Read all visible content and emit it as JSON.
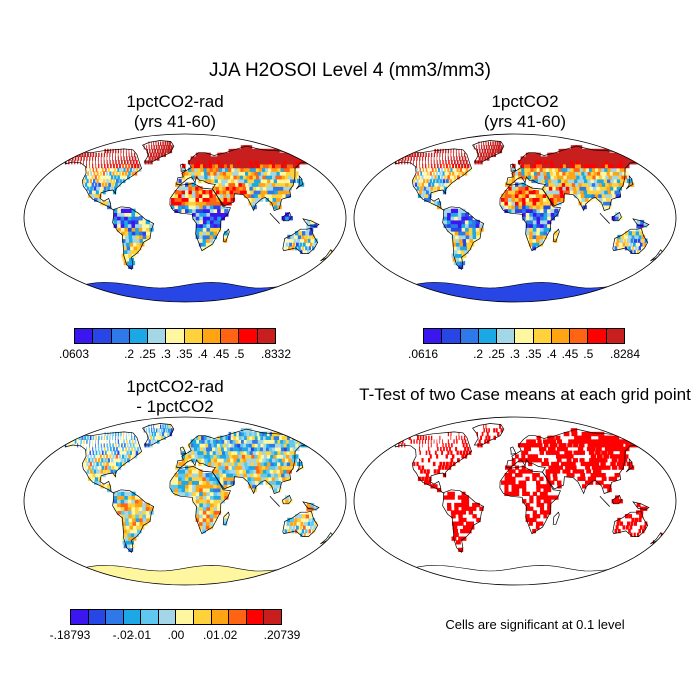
{
  "title": "JJA H2OSOI Level 4 (mm3/mm3)",
  "panels": [
    {
      "title_line1": "1pctCO2-rad",
      "title_line2": "(yrs 41-60)"
    },
    {
      "title_line1": "1pctCO2",
      "title_line2": "(yrs 41-60)"
    },
    {
      "title_line1": "1pctCO2-rad",
      "title_line2": "- 1pctCO2"
    },
    {
      "title_line1": "T-Test of two Case means at each grid point",
      "title_line2": ""
    }
  ],
  "colorbars": {
    "abs_colors": [
      "#3c16f0",
      "#2846e6",
      "#2f78e8",
      "#1ca8e6",
      "#a3d6e6",
      "#fff7a0",
      "#ffd23c",
      "#ffa514",
      "#ff6414",
      "#ff0000",
      "#c81e1e"
    ],
    "diff_colors": [
      "#3c16f0",
      "#2846e6",
      "#2f78e8",
      "#1ca8e6",
      "#5fc8f0",
      "#a3d6e6",
      "#fff7a0",
      "#ffd23c",
      "#ffa514",
      "#ff6414",
      "#ff0000",
      "#c81e1e"
    ],
    "cb1_labels": [
      ".0603",
      ".2",
      ".25",
      ".3",
      ".35",
      ".4",
      ".45",
      ".5",
      ".8332"
    ],
    "cb2_labels": [
      ".0616",
      ".2",
      ".25",
      ".3",
      ".35",
      ".4",
      ".45",
      ".5",
      ".8284"
    ],
    "cb3_labels": [
      "-.18793",
      "-.02",
      "-.01",
      ".00",
      ".01",
      ".02",
      ".20739"
    ]
  },
  "ttest_note": "Cells are significant at 0.1 level",
  "ttest_color": "#ff0000"
}
